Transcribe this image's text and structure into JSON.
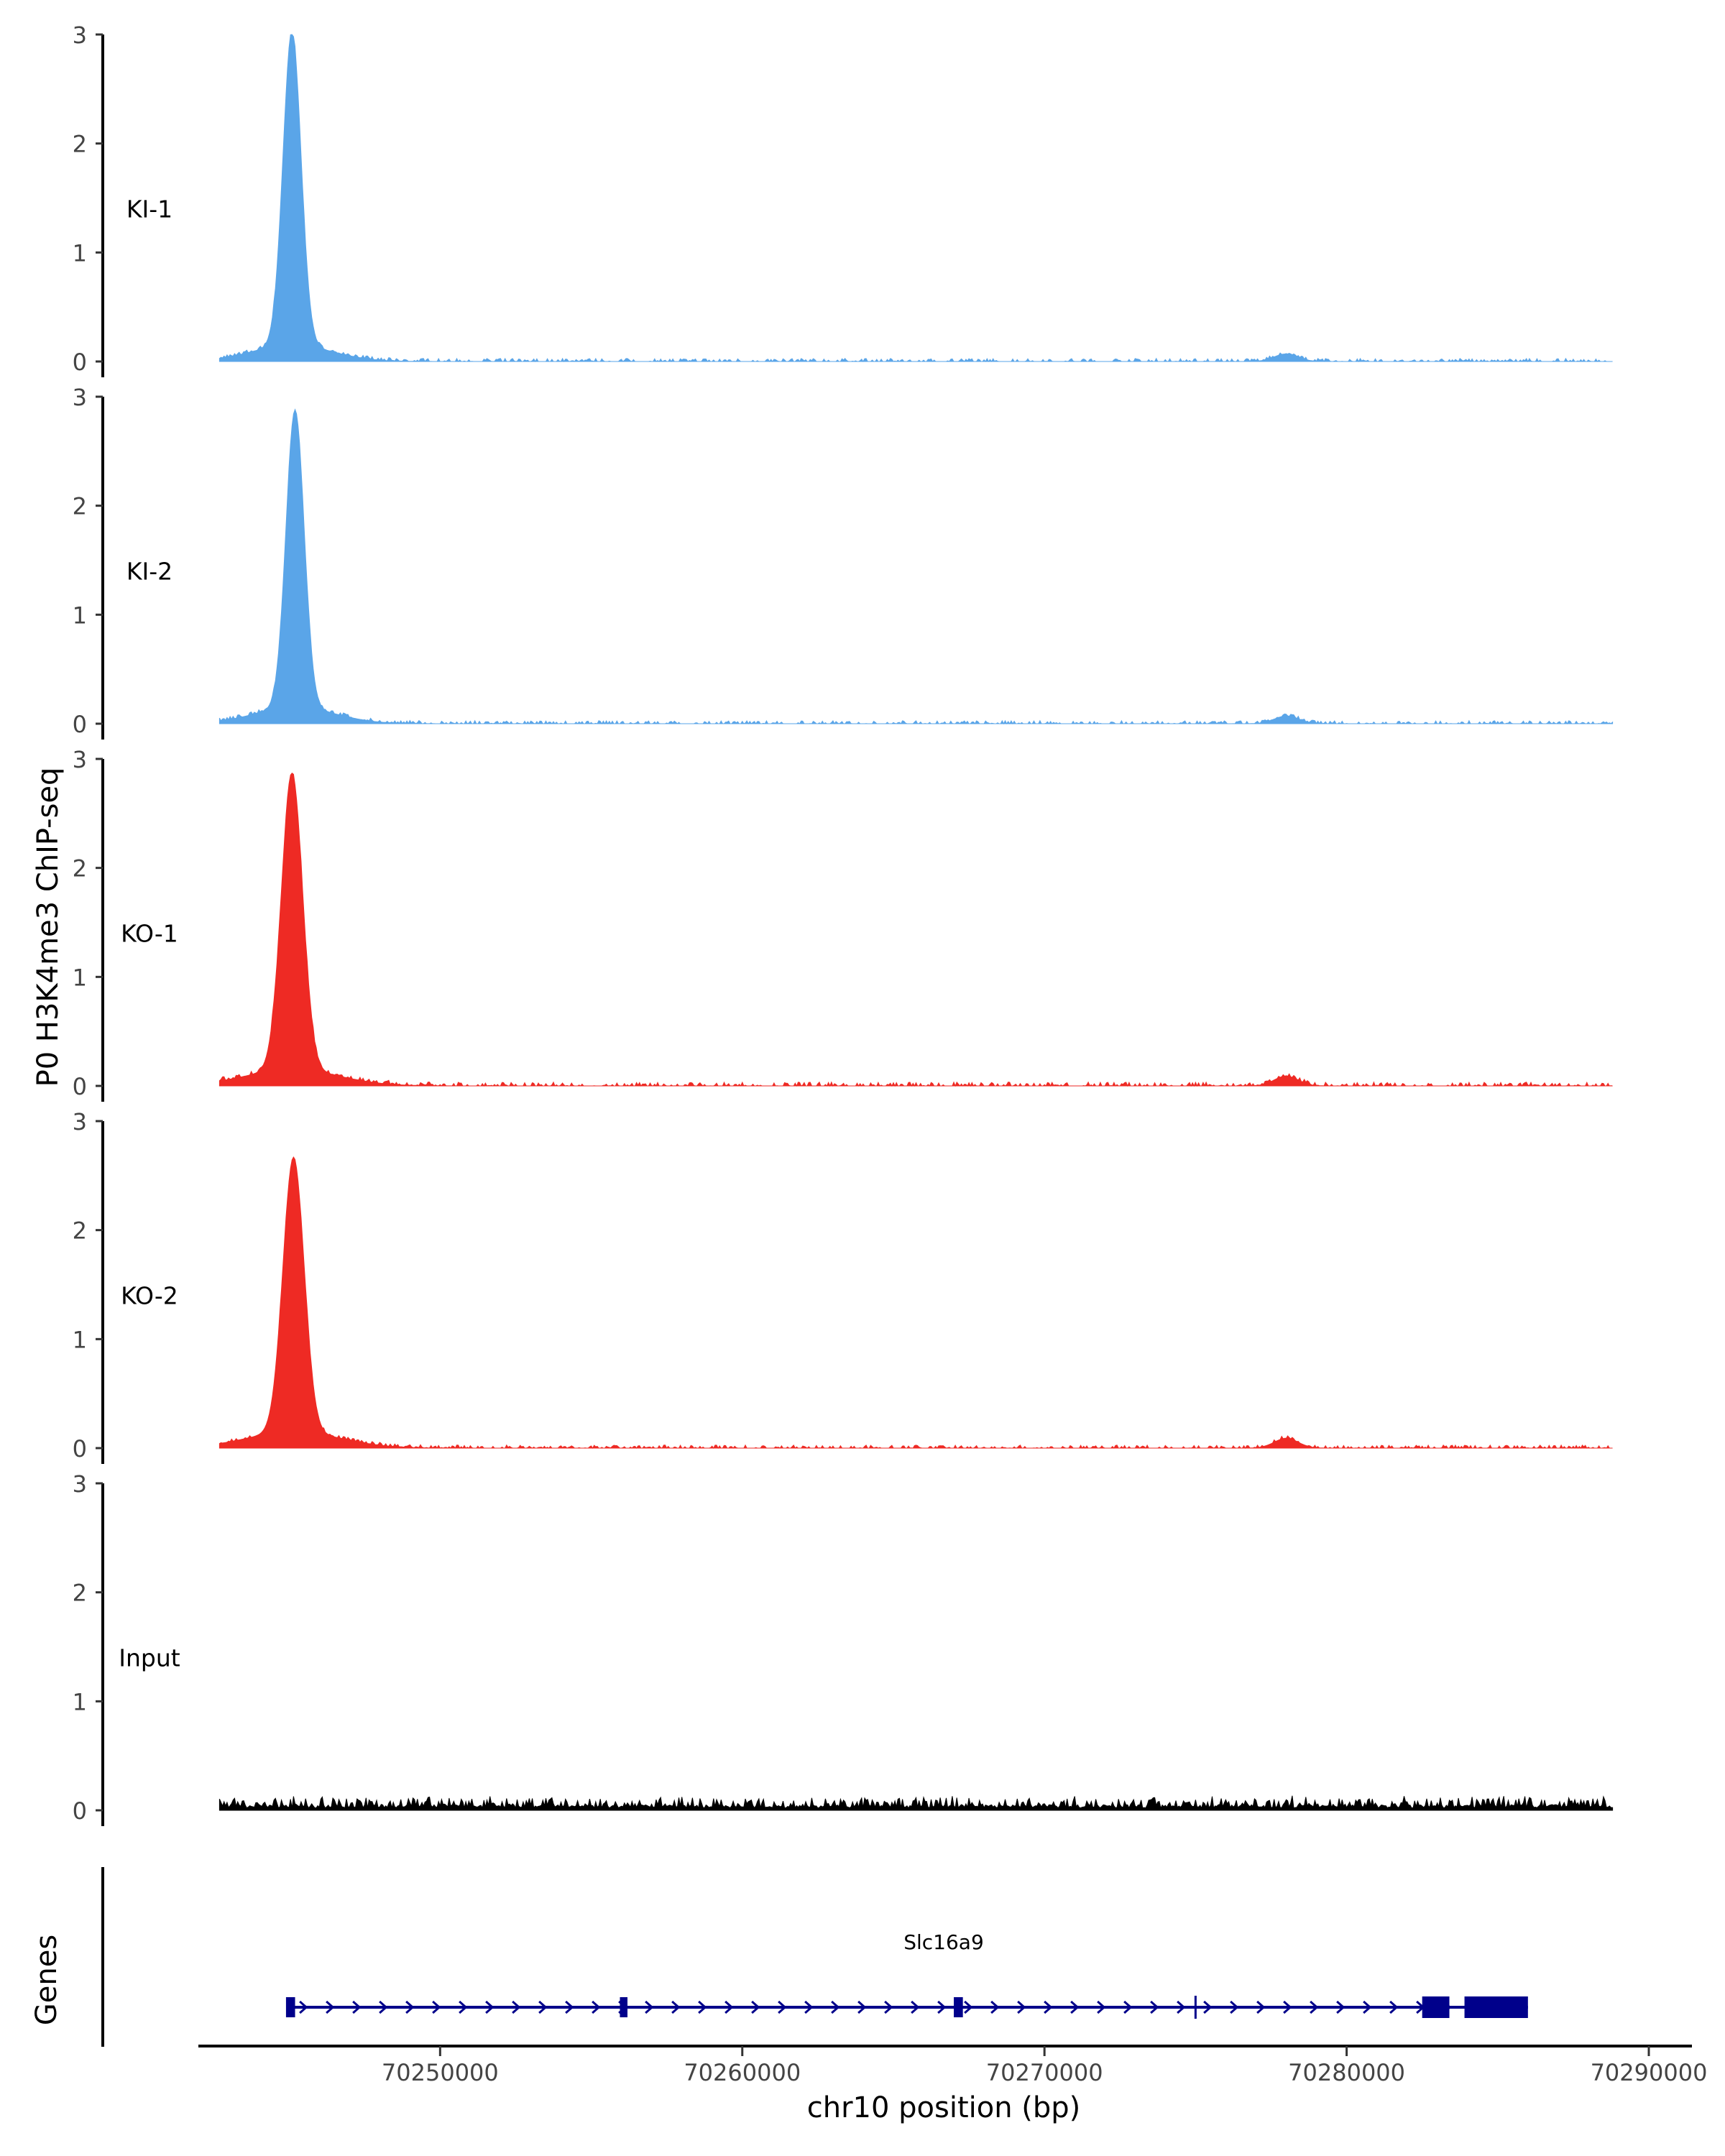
{
  "chart_data": {
    "type": "area",
    "title": "",
    "ylabel": "P0 H3K4me3 ChIP-seq",
    "xlabel": "chr10 position (bp)",
    "xlim": [
      70242000,
      70290000
    ],
    "ylim": [
      0,
      3
    ],
    "yticks": [
      "0",
      "1",
      "2",
      "3"
    ],
    "xticks": [
      {
        "value": 70250000,
        "label": "70250000"
      },
      {
        "value": 70260000,
        "label": "70260000"
      },
      {
        "value": 70270000,
        "label": "70270000"
      },
      {
        "value": 70280000,
        "label": "70280000"
      },
      {
        "value": 70290000,
        "label": "70290000"
      }
    ],
    "tracks": [
      {
        "name": "KI-1",
        "color": "#5aa5e8",
        "peak_position": 70245100,
        "peak_height": 2.87,
        "peak_width": 600,
        "secondary_position": 70278000,
        "secondary_height": 0.07,
        "noise": 0.02
      },
      {
        "name": "KI-2",
        "color": "#5aa5e8",
        "peak_position": 70245200,
        "peak_height": 2.73,
        "peak_width": 600,
        "secondary_position": 70278000,
        "secondary_height": 0.07,
        "noise": 0.02
      },
      {
        "name": "KO-1",
        "color": "#ee2a24",
        "peak_position": 70245100,
        "peak_height": 2.72,
        "peak_width": 700,
        "secondary_position": 70278000,
        "secondary_height": 0.09,
        "noise": 0.025
      },
      {
        "name": "KO-2",
        "color": "#ee2a24",
        "peak_position": 70245150,
        "peak_height": 2.52,
        "peak_width": 700,
        "secondary_position": 70278000,
        "secondary_height": 0.09,
        "noise": 0.02
      },
      {
        "name": "Input",
        "color": "#000000",
        "peak_position": 70245000,
        "peak_height": 0.0,
        "peak_width": 600,
        "secondary_position": 70278000,
        "secondary_height": 0.0,
        "noise": 0.06
      }
    ],
    "data_start": 70242700,
    "data_end": 70288800,
    "genes_label": "Genes",
    "gene": {
      "name": "Slc16a9",
      "start": 70245000,
      "end": 70286000,
      "strand": "+",
      "color": "#00008b",
      "exons": [
        {
          "start": 70244900,
          "end": 70245200,
          "type": "utr"
        },
        {
          "start": 70255950,
          "end": 70256200,
          "type": "utr"
        },
        {
          "start": 70267000,
          "end": 70267300,
          "type": "utr"
        },
        {
          "start": 70282500,
          "end": 70283400,
          "type": "cds"
        },
        {
          "start": 70283900,
          "end": 70286000,
          "type": "cds"
        }
      ]
    }
  }
}
